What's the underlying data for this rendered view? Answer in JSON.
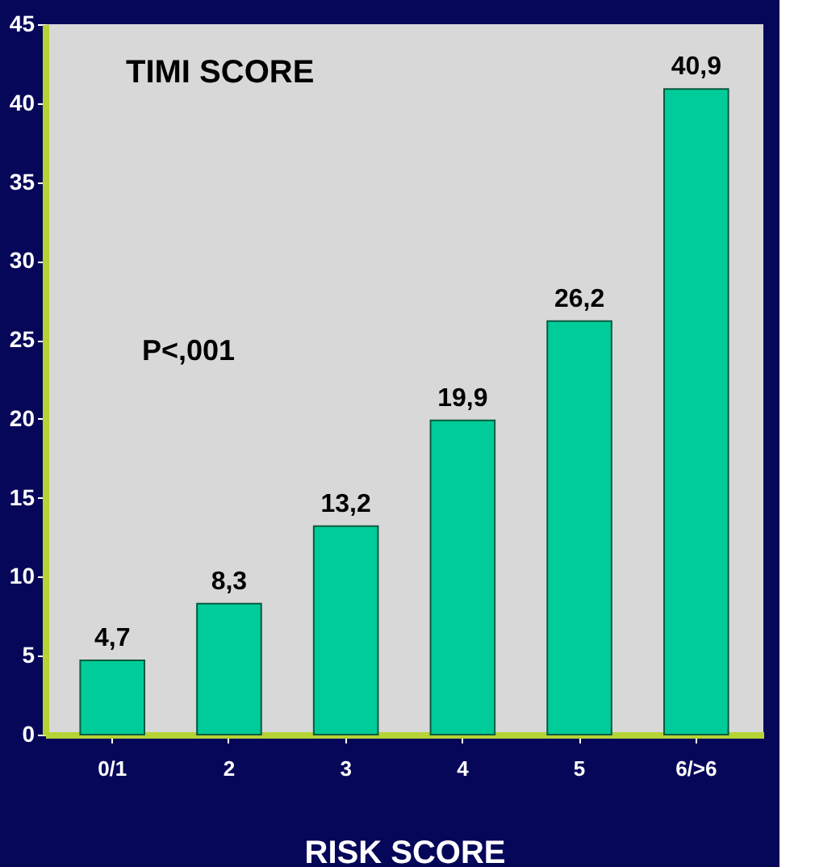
{
  "chart_data": {
    "type": "bar",
    "title": "TIMI SCORE",
    "xlabel": "RISK SCORE",
    "categories": [
      "0/1",
      "2",
      "3",
      "4",
      "5",
      "6/>6"
    ],
    "values": [
      4.7,
      8.3,
      13.2,
      19.9,
      26.2,
      40.9
    ],
    "value_labels": [
      "4,7",
      "8,3",
      "13,2",
      "19,9",
      "26,2",
      "40,9"
    ],
    "color": "#00cc99",
    "ylim": [
      0,
      45
    ],
    "yticks": [
      0,
      5,
      10,
      15,
      20,
      25,
      30,
      35,
      40,
      45
    ],
    "annotations": [
      "P<,001"
    ],
    "grid": false
  }
}
